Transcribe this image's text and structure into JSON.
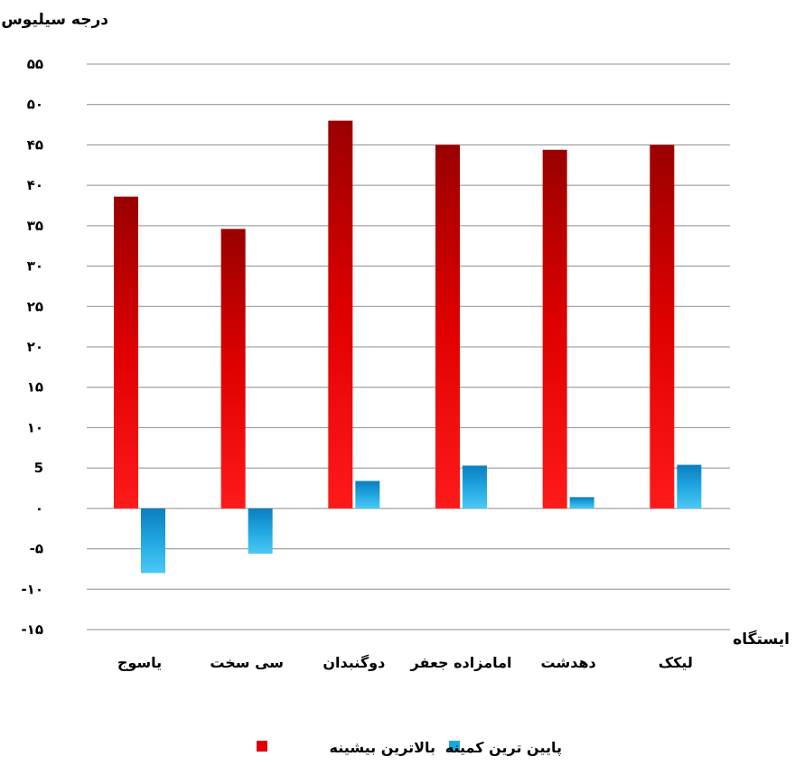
{
  "chart_data": {
    "type": "bar",
    "ylabel": "درجه سیلیوس",
    "xlabel": "ایستگاه",
    "categories": [
      "یاسوج",
      "سی سخت",
      "دوگنبدان",
      "امامزاده جعفر",
      "دهدشت",
      "لیکک"
    ],
    "series": [
      {
        "name": "بالاترین بیشینه",
        "color": "#e00000",
        "values": [
          38.6,
          34.6,
          48,
          45,
          44.4,
          45
        ]
      },
      {
        "name": "پایین ترین کمینه",
        "color": "#1aa7dd",
        "values": [
          -8,
          -5.6,
          3.4,
          5.3,
          1.4,
          5.4
        ]
      }
    ],
    "ylim": [
      -15,
      55
    ],
    "ytick_values": [
      55,
      50,
      45,
      40,
      35,
      30,
      25,
      20,
      15,
      10,
      5,
      0,
      -5,
      -10,
      -15
    ],
    "ytick_labels": [
      "۵۵",
      "۵۰",
      "۴۵",
      "۴۰",
      "۳۵",
      "۳۰",
      "۲۵",
      "۲۰",
      "۱۵",
      "۱۰",
      "5",
      "۰",
      "-۵",
      "-۱۰",
      "-۱۵"
    ],
    "grid": true,
    "legend_position": "bottom"
  }
}
